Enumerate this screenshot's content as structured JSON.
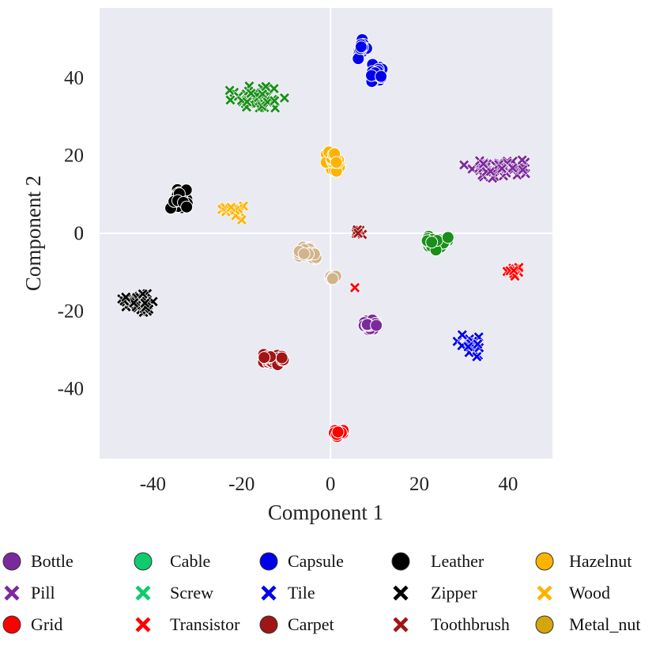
{
  "chart_data": {
    "type": "scatter",
    "xlabel": "Component 1",
    "ylabel": "Component 2",
    "xlim": [
      -52,
      50
    ],
    "ylim": [
      -58,
      58
    ],
    "xticks": [
      -40,
      -20,
      0,
      20,
      40
    ],
    "yticks": [
      40,
      20,
      0,
      -20,
      -40
    ],
    "grid": true,
    "background": "#eaeaf2",
    "legend_position": "bottom",
    "legend": [
      {
        "label": "Bottle",
        "marker": "circle",
        "color": "#7b2a9c"
      },
      {
        "label": "Cable",
        "marker": "circle",
        "color": "#0ecb6e"
      },
      {
        "label": "Capsule",
        "marker": "circle",
        "color": "#0000ee"
      },
      {
        "label": "Leather",
        "marker": "circle",
        "color": "#000000"
      },
      {
        "label": "Hazelnut",
        "marker": "circle",
        "color": "#ffb300"
      },
      {
        "label": "Pill",
        "marker": "x",
        "color": "#7b2a9c"
      },
      {
        "label": "Screw",
        "marker": "x",
        "color": "#0ecb6e"
      },
      {
        "label": "Tile",
        "marker": "x",
        "color": "#0000ee"
      },
      {
        "label": "Zipper",
        "marker": "x",
        "color": "#000000"
      },
      {
        "label": "Wood",
        "marker": "x",
        "color": "#ffb300"
      },
      {
        "label": "Grid",
        "marker": "circle",
        "color": "#ff0000"
      },
      {
        "label": "Transistor",
        "marker": "x",
        "color": "#ff0000"
      },
      {
        "label": "Carpet",
        "marker": "circle",
        "color": "#a01515"
      },
      {
        "label": "Toothbrush",
        "marker": "x",
        "color": "#a01515"
      },
      {
        "label": "Metal_nut",
        "marker": "circle",
        "color": "#d4a60c"
      }
    ],
    "clusters": [
      {
        "marker": "circle",
        "color": "#0000ee",
        "center": [
          7.0,
          47.5
        ],
        "spread": [
          1.5,
          2.5
        ],
        "count": 14
      },
      {
        "marker": "circle",
        "color": "#0000ee",
        "center": [
          10.5,
          41.0
        ],
        "spread": [
          2.0,
          2.0
        ],
        "count": 20
      },
      {
        "marker": "x",
        "color": "#1a8f1a",
        "center": [
          -17.0,
          35.0
        ],
        "spread": [
          4.5,
          2.4
        ],
        "count": 45
      },
      {
        "marker": "circle",
        "color": "#ffb300",
        "center": [
          1.0,
          18.0
        ],
        "spread": [
          1.8,
          2.2
        ],
        "count": 25
      },
      {
        "marker": "x",
        "color": "#7b2a9c",
        "center": [
          37.0,
          17.0
        ],
        "spread": [
          5.5,
          1.8
        ],
        "count": 55
      },
      {
        "marker": "circle",
        "color": "#000000",
        "center": [
          -34.0,
          9.0
        ],
        "spread": [
          2.0,
          2.5
        ],
        "count": 25
      },
      {
        "marker": "x",
        "color": "#ffb300",
        "center": [
          -22.0,
          6.0
        ],
        "spread": [
          2.5,
          1.8
        ],
        "count": 20
      },
      {
        "marker": "x",
        "color": "#a01515",
        "center": [
          6.5,
          0.5
        ],
        "spread": [
          1.2,
          0.6
        ],
        "count": 8
      },
      {
        "marker": "circle",
        "color": "#1a8f1a",
        "center": [
          23.5,
          -2.5
        ],
        "spread": [
          2.2,
          1.8
        ],
        "count": 30
      },
      {
        "marker": "x",
        "color": "#ff0000",
        "center": [
          41.5,
          -9.5
        ],
        "spread": [
          1.2,
          1.3
        ],
        "count": 14
      },
      {
        "marker": "circle",
        "color": "#d2b48c",
        "center": [
          -5.0,
          -5.0
        ],
        "spread": [
          1.8,
          1.8
        ],
        "count": 22
      },
      {
        "marker": "circle",
        "color": "#d2b48c",
        "center": [
          0.5,
          -11.5
        ],
        "spread": [
          0.7,
          0.7
        ],
        "count": 6
      },
      {
        "marker": "x",
        "color": "#ff0000",
        "center": [
          5.5,
          -14.0
        ],
        "spread": [
          0.0,
          0.0
        ],
        "count": 1
      },
      {
        "marker": "x",
        "color": "#000000",
        "center": [
          -43.0,
          -18.0
        ],
        "spread": [
          3.0,
          2.0
        ],
        "count": 45
      },
      {
        "marker": "circle",
        "color": "#7b2a9c",
        "center": [
          9.0,
          -23.5
        ],
        "spread": [
          1.5,
          1.3
        ],
        "count": 20
      },
      {
        "marker": "x",
        "color": "#0000ee",
        "center": [
          31.5,
          -29.0
        ],
        "spread": [
          2.2,
          2.0
        ],
        "count": 20
      },
      {
        "marker": "circle",
        "color": "#a01515",
        "center": [
          -13.0,
          -32.5
        ],
        "spread": [
          2.5,
          1.3
        ],
        "count": 28
      },
      {
        "marker": "circle",
        "color": "#ff0000",
        "center": [
          1.5,
          -51.5
        ],
        "spread": [
          1.2,
          1.0
        ],
        "count": 16
      }
    ]
  }
}
